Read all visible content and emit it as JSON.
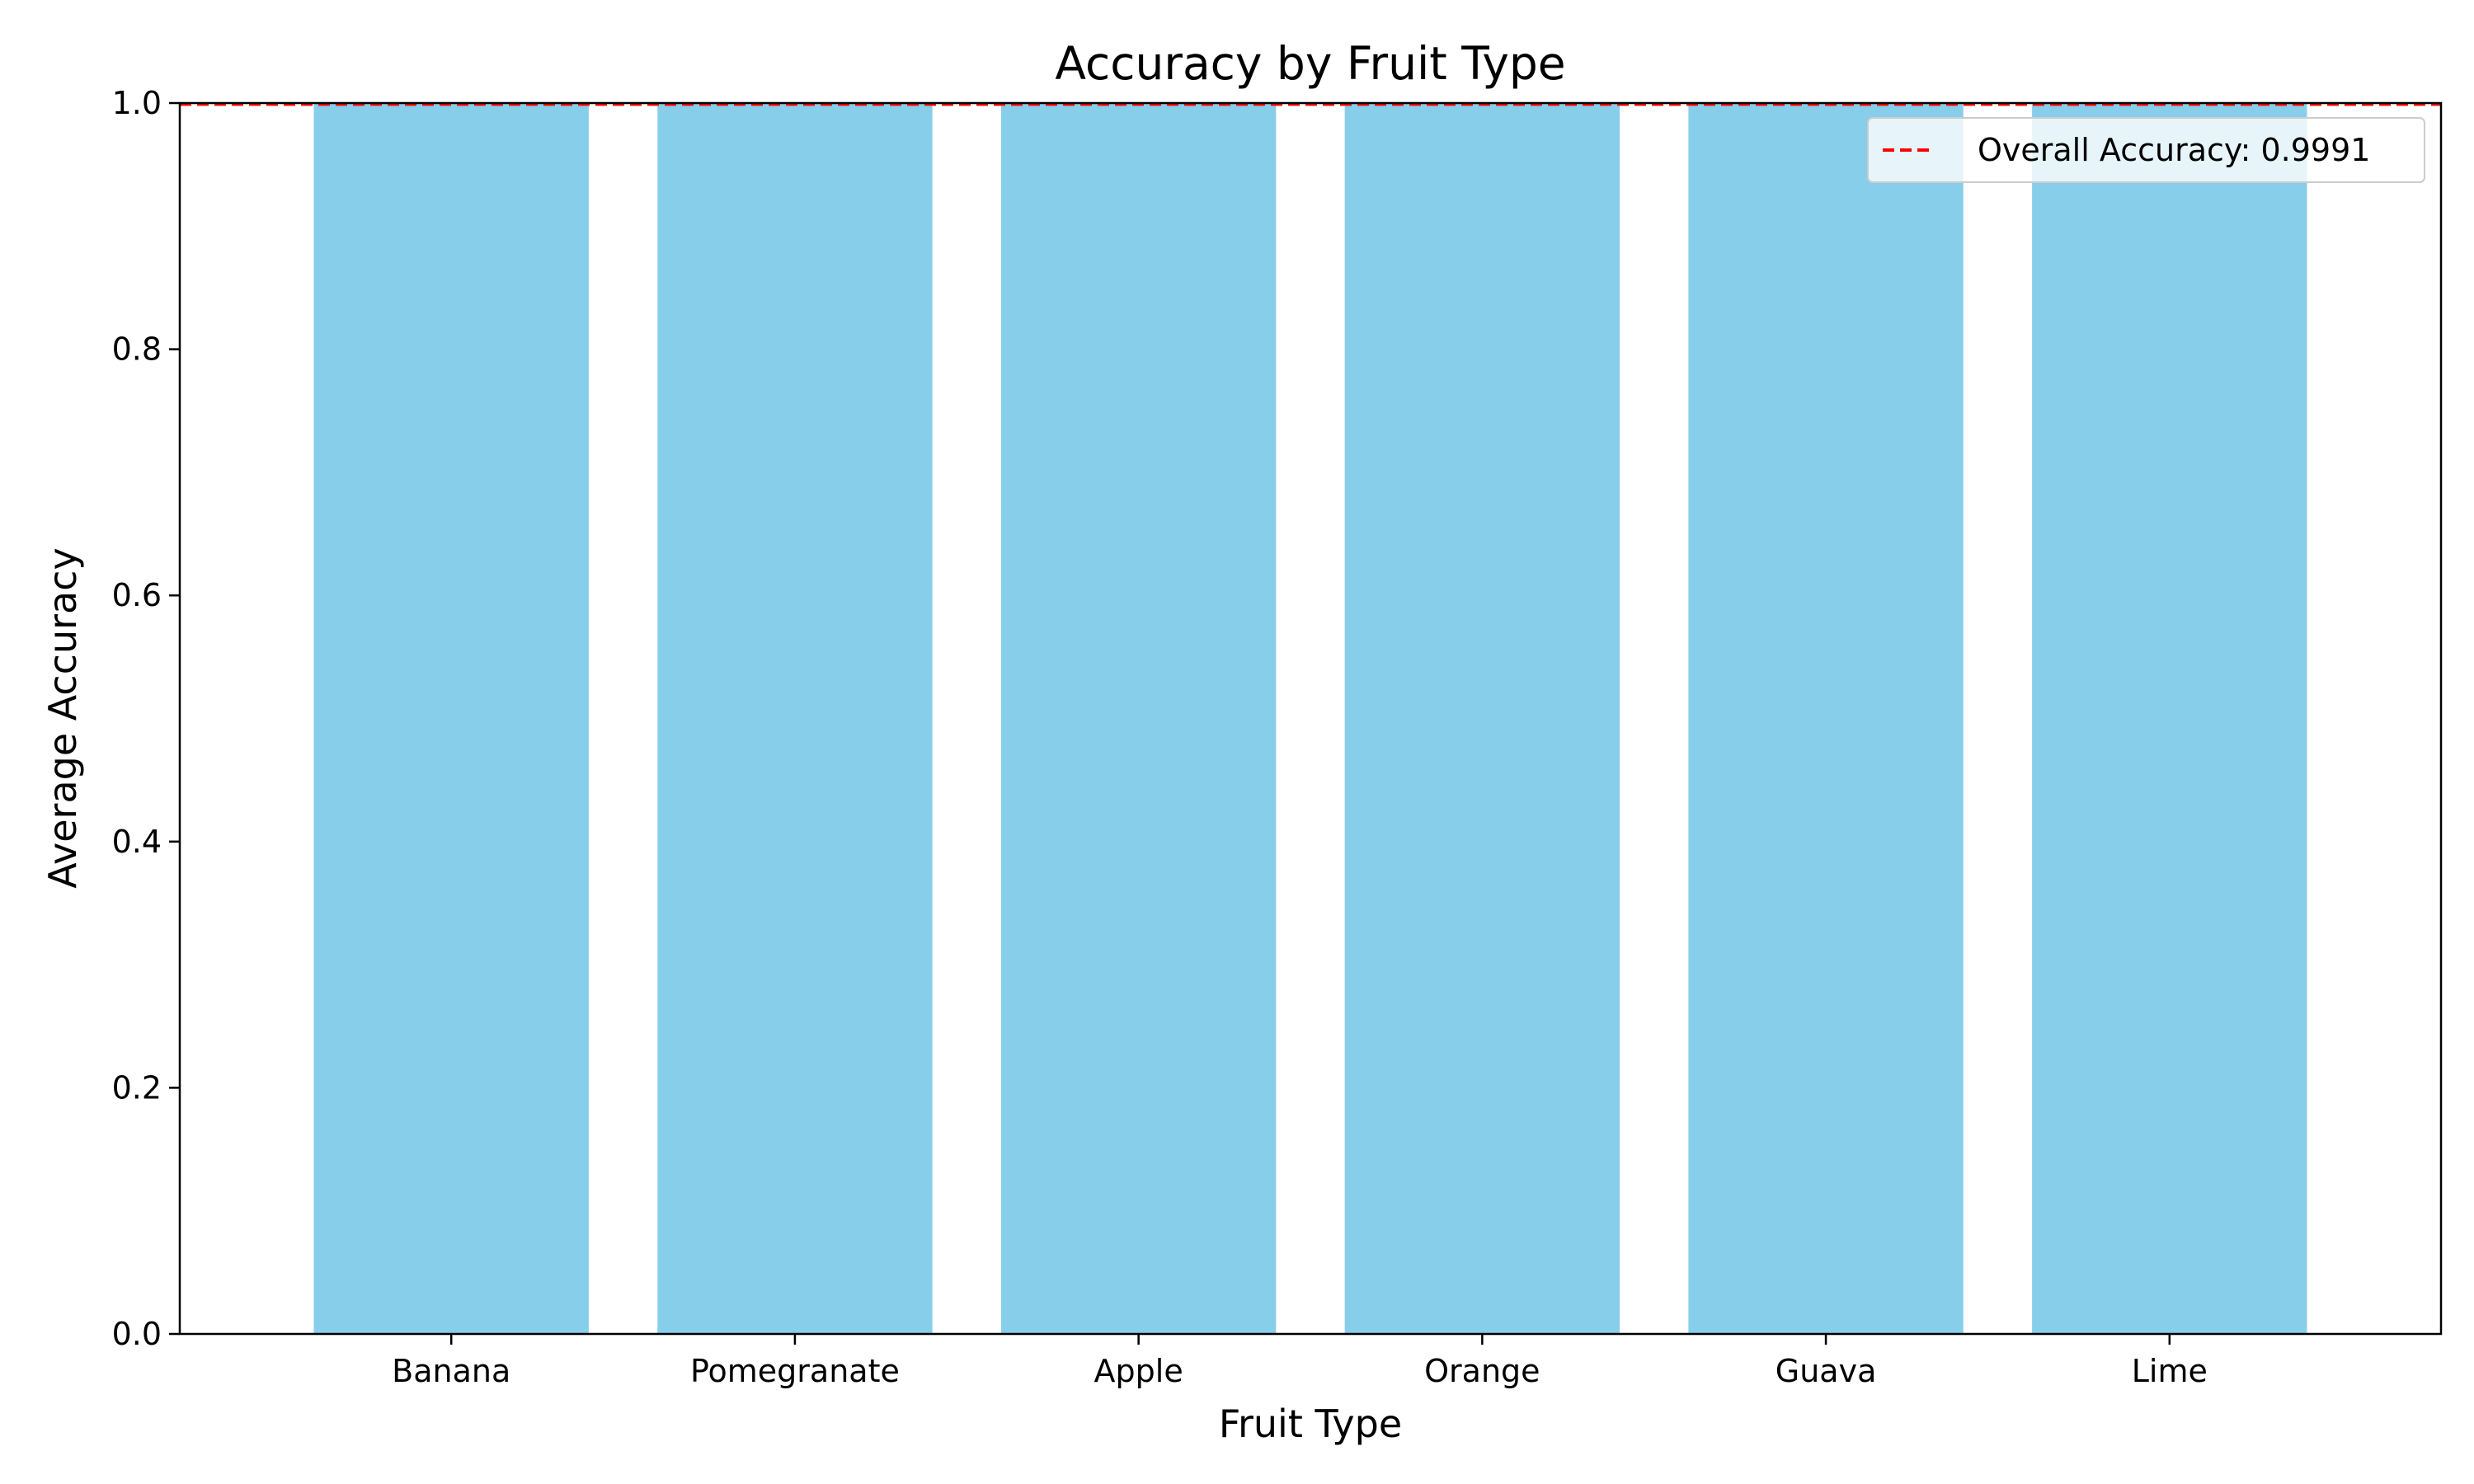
{
  "chart_data": {
    "type": "bar",
    "title": "Accuracy by Fruit Type",
    "xlabel": "Fruit Type",
    "ylabel": "Average Accuracy",
    "categories": [
      "Banana",
      "Pomegranate",
      "Apple",
      "Orange",
      "Guava",
      "Lime"
    ],
    "values": [
      1.0,
      1.0,
      1.0,
      1.0,
      1.0,
      1.0
    ],
    "ylim": [
      0.0,
      1.0
    ],
    "yticks": [
      0.0,
      0.2,
      0.4,
      0.6,
      0.8,
      1.0
    ],
    "ytick_labels": [
      "0.0",
      "0.2",
      "0.4",
      "0.6",
      "0.8",
      "1.0"
    ],
    "bar_color": "#87CEEB",
    "reference_line": {
      "value": 0.9991,
      "label": "Overall Accuracy: 0.9991",
      "color": "#ff0000",
      "style": "dashed"
    },
    "legend": {
      "position": "top-right"
    },
    "grid": false
  }
}
